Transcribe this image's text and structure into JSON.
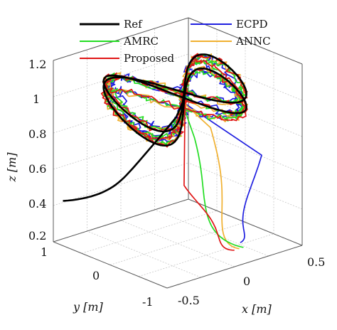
{
  "chart_data": {
    "type": "line",
    "chart_kind": "3d-line",
    "title": "",
    "xlabel": "x [m]",
    "ylabel": "y [m]",
    "zlabel": "z [m]",
    "xlim": [
      -0.5,
      0.5
    ],
    "ylim": [
      -1,
      1
    ],
    "zlim": [
      0.2,
      1.2
    ],
    "x_ticks": [
      "-0.5",
      "0",
      "0.5"
    ],
    "y_ticks": [
      "1",
      "0",
      "-1"
    ],
    "z_ticks": [
      "0.2",
      "0.4",
      "0.6",
      "0.8",
      "1",
      "1.2"
    ],
    "grid": true,
    "legend_position": "top",
    "series": [
      {
        "name": "Ref",
        "color": "#000000"
      },
      {
        "name": "ECPD",
        "color": "#1f1fe0"
      },
      {
        "name": "AMRC",
        "color": "#22dd22"
      },
      {
        "name": "ANNC",
        "color": "#f0b030"
      },
      {
        "name": "Proposed",
        "color": "#e01515"
      }
    ],
    "view": {
      "azimuth_deg": -40,
      "elevation_deg": 30
    }
  }
}
